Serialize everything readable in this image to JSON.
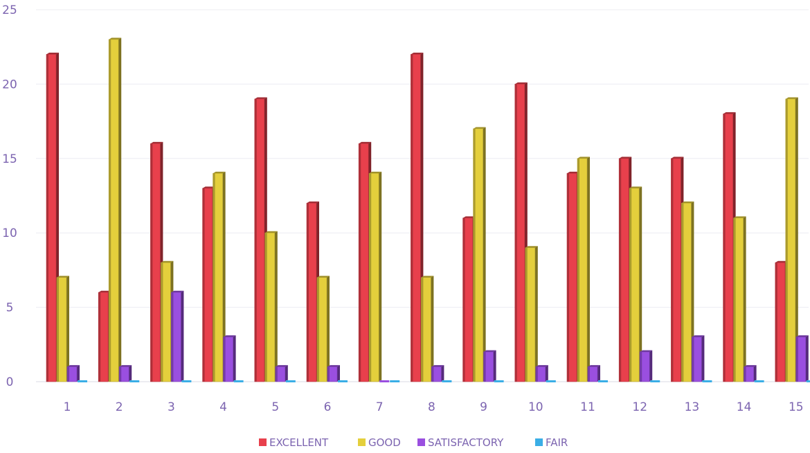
{
  "chart_data": {
    "type": "bar",
    "title": "",
    "xlabel": "",
    "ylabel": "",
    "ylim": [
      0,
      25
    ],
    "yticks": [
      0,
      5,
      10,
      15,
      20,
      25
    ],
    "grid": true,
    "legend_position": "bottom",
    "categories": [
      "1",
      "2",
      "3",
      "4",
      "5",
      "6",
      "7",
      "8",
      "9",
      "10",
      "11",
      "12",
      "13",
      "14",
      "15"
    ],
    "series": [
      {
        "name": "EXCELLENT",
        "color": "#e8404c",
        "values": [
          22,
          6,
          16,
          13,
          19,
          12,
          16,
          22,
          11,
          20,
          14,
          15,
          15,
          18,
          8
        ]
      },
      {
        "name": "GOOD",
        "color": "#e4cf3c",
        "values": [
          7,
          23,
          8,
          14,
          10,
          7,
          14,
          7,
          17,
          9,
          15,
          13,
          12,
          11,
          19
        ]
      },
      {
        "name": "SATISFACTORY",
        "color": "#9a4fe0",
        "values": [
          1,
          1,
          6,
          3,
          1,
          1,
          0,
          1,
          2,
          1,
          1,
          2,
          3,
          1,
          3
        ]
      },
      {
        "name": "FAIR",
        "color": "#3aaee6",
        "values": [
          0,
          0,
          0,
          0,
          0,
          0,
          0,
          0,
          0,
          0,
          0,
          0,
          0,
          0,
          0
        ]
      }
    ]
  }
}
